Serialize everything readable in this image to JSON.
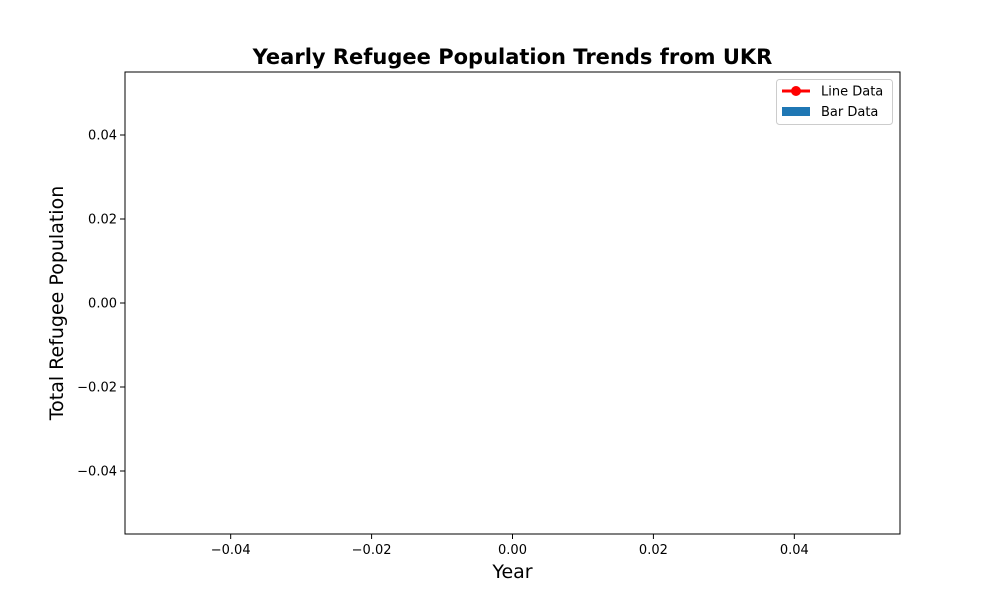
{
  "chart_data": {
    "type": "bar",
    "title": "Yearly Refugee Population Trends from UKR",
    "xlabel": "Year",
    "ylabel": "Total Refugee Population",
    "x": [],
    "series": [
      {
        "name": "Line Data",
        "kind": "line",
        "color": "#ff0000",
        "marker": "circle",
        "values": []
      },
      {
        "name": "Bar Data",
        "kind": "bar",
        "color": "#1f77b4",
        "values": []
      }
    ],
    "xlim": [
      -0.055,
      0.055
    ],
    "ylim": [
      -0.055,
      0.055
    ],
    "xticks": [
      -0.04,
      -0.02,
      0.0,
      0.02,
      0.04
    ],
    "xtick_labels": [
      "−0.04",
      "−0.02",
      "0.00",
      "0.02",
      "0.04"
    ],
    "yticks": [
      -0.04,
      -0.02,
      0.0,
      0.02,
      0.04
    ],
    "ytick_labels": [
      "−0.04",
      "−0.02",
      "0.00",
      "0.02",
      "0.04"
    ],
    "grid": false,
    "legend_position": "top-right"
  }
}
